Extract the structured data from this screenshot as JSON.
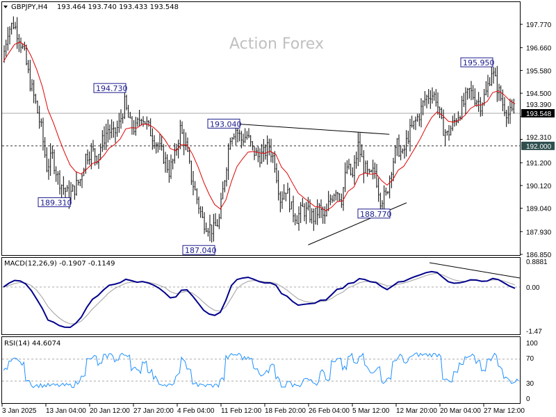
{
  "header": {
    "symbol": "GBPJPY,H4",
    "ohlc": "193.464 193.740 193.433 193.548"
  },
  "watermark": "Action Forex",
  "colors": {
    "bars": "#000000",
    "ma": "#e00000",
    "macd": "#00008b",
    "signal": "#a0a0a0",
    "rsi": "#1e90ff",
    "annotation": "#1a1a8c"
  },
  "chart_data": [
    {
      "type": "ohlc",
      "title": "GBPJPY,H4",
      "price_axis_ticks": [
        "197.770",
        "196.660",
        "195.580",
        "194.500",
        "193.390",
        "192.310",
        "191.200",
        "190.120",
        "189.040",
        "187.930",
        "186.850"
      ],
      "ylim": [
        186.85,
        197.77
      ],
      "time_axis_ticks": [
        "3 Jan 2025",
        "13 Jan 04:00",
        "20 Jan 12:00",
        "27 Jan 20:00",
        "4 Feb 04:00",
        "11 Feb 12:00",
        "18 Feb 20:00",
        "26 Feb 04:00",
        "5 Mar 12:00",
        "12 Mar 20:00",
        "20 Mar 04:00",
        "27 Mar 12:00"
      ],
      "closes": [
        196.0,
        197.5,
        197.8,
        197.2,
        196.3,
        195.0,
        194.0,
        192.8,
        191.0,
        191.5,
        190.5,
        190.0,
        189.6,
        190.0,
        190.4,
        191.5,
        191.8,
        191.5,
        192.2,
        192.8,
        192.5,
        193.0,
        194.0,
        193.0,
        192.8,
        193.5,
        193.0,
        192.5,
        192.0,
        191.5,
        190.8,
        191.5,
        192.8,
        192.0,
        190.5,
        189.5,
        188.5,
        188.2,
        188.0,
        188.5,
        190.5,
        192.5,
        192.8,
        192.3,
        192.5,
        191.8,
        191.5,
        191.6,
        192.0,
        191.2,
        189.5,
        190.0,
        189.0,
        188.6,
        189.0,
        188.8,
        188.6,
        189.0,
        188.5,
        189.5,
        190.0,
        189.5,
        191.0,
        190.5,
        192.0,
        191.0,
        190.5,
        190.8,
        189.5,
        189.6,
        191.0,
        192.0,
        191.5,
        192.5,
        193.0,
        193.5,
        194.2,
        194.5,
        194.3,
        193.0,
        192.5,
        193.0,
        193.5,
        194.0,
        194.6,
        194.3,
        194.0,
        194.5,
        195.6,
        194.8,
        194.0,
        193.5,
        193.55
      ],
      "current_price": {
        "label": "193.548",
        "value": 193.548
      },
      "horizontal_level": {
        "label": "192.000",
        "value": 192.0
      },
      "annotations": [
        {
          "label": "194.730",
          "index": 22,
          "value": 194.73
        },
        {
          "label": "189.310",
          "index": 12,
          "value": 189.31
        },
        {
          "label": "187.040",
          "index": 38,
          "value": 187.04
        },
        {
          "label": "193.040",
          "index": 42,
          "value": 193.04
        },
        {
          "label": "188.770",
          "index": 69,
          "value": 188.77
        },
        {
          "label": "195.950",
          "index": 88,
          "value": 195.95
        }
      ],
      "trendlines": [
        {
          "from": [
            42,
            193.04
          ],
          "to": [
            69.4,
            192.55
          ]
        },
        {
          "from": [
            54.8,
            187.3
          ],
          "to": [
            72.5,
            189.3
          ]
        }
      ]
    },
    {
      "type": "line",
      "title": "MACD(12,26,9) -0.1907 -0.1149",
      "ticks": [
        "0.8881",
        "0.00",
        "-1.47"
      ],
      "ylim": [
        -1.47,
        0.8881
      ]
    },
    {
      "type": "line",
      "title": "RSI(14) 44.6074",
      "ticks": [
        "100",
        "70",
        "30",
        "0"
      ],
      "ylim": [
        0,
        100
      ]
    }
  ]
}
